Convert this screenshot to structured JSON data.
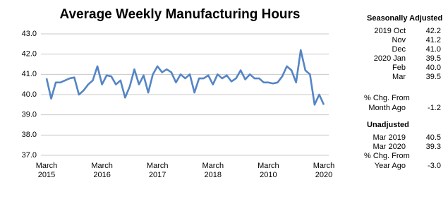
{
  "chart_data": {
    "type": "line",
    "title": "Average Weekly Manufacturing Hours",
    "categories": [
      "March\n2015",
      null,
      null,
      null,
      null,
      null,
      null,
      null,
      null,
      null,
      null,
      null,
      "March\n2016",
      null,
      null,
      null,
      null,
      null,
      null,
      null,
      null,
      null,
      null,
      null,
      "March\n2017",
      null,
      null,
      null,
      null,
      null,
      null,
      null,
      null,
      null,
      null,
      null,
      "March\n2018",
      null,
      null,
      null,
      null,
      null,
      null,
      null,
      null,
      null,
      null,
      null,
      "March\n2010",
      null,
      null,
      null,
      null,
      null,
      null,
      null,
      null,
      null,
      null,
      null,
      "March\n2020"
    ],
    "series": [
      {
        "color": "#5585c5",
        "values": [
          40.8,
          39.8,
          40.6,
          40.6,
          40.7,
          40.8,
          40.85,
          40.0,
          40.2,
          40.5,
          40.7,
          41.4,
          40.5,
          40.95,
          40.9,
          40.5,
          40.7,
          39.85,
          40.4,
          41.25,
          40.5,
          40.95,
          40.1,
          41.0,
          41.4,
          41.1,
          41.25,
          41.1,
          40.6,
          41.0,
          40.8,
          41.0,
          40.1,
          40.8,
          40.8,
          40.95,
          40.5,
          41.0,
          40.8,
          40.95,
          40.65,
          40.8,
          41.2,
          40.75,
          41.0,
          40.8,
          40.8,
          40.6,
          40.6,
          40.55,
          40.6,
          40.9,
          41.4,
          41.2,
          40.6,
          42.2,
          41.2,
          41.0,
          39.5,
          40.0,
          39.5
        ]
      }
    ],
    "ylim": [
      37,
      43
    ],
    "yticks": [
      {
        "value": 37,
        "label": "37.0"
      },
      {
        "value": 38,
        "label": "38.0"
      },
      {
        "value": 39,
        "label": "39.0"
      },
      {
        "value": 40,
        "label": "40.0"
      },
      {
        "value": 41,
        "label": "41.0"
      },
      {
        "value": 42,
        "label": "42.0"
      },
      {
        "value": 43,
        "label": "43.0"
      }
    ],
    "grid": true
  },
  "side_panel": {
    "seasonal": {
      "title": "Seasonally Adjusted",
      "rows": [
        [
          "2019 Oct",
          "42.2"
        ],
        [
          "Nov",
          "41.2"
        ],
        [
          "Dec",
          "41.0"
        ],
        [
          "2020 Jan",
          "39.5"
        ],
        [
          "Feb",
          "40.0"
        ],
        [
          "Mar",
          "39.5"
        ]
      ],
      "change_label": [
        "% Chg. From",
        "Month Ago"
      ],
      "change_value": "-1.2"
    },
    "unadjusted": {
      "title": "Unadjusted",
      "rows": [
        [
          "Mar 2019",
          "40.5"
        ],
        [
          "Mar 2020",
          "39.3"
        ]
      ],
      "change_label": [
        "% Chg. From",
        "Year Ago"
      ],
      "change_value": "-3.0"
    }
  }
}
